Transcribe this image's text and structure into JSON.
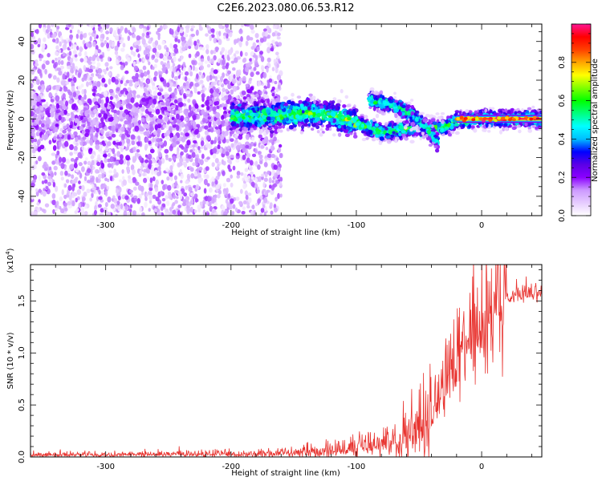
{
  "title": "C2E6.2023.080.06.53.R12",
  "chart_data": [
    {
      "type": "heatmap",
      "xlabel": "Height of straight line (km)",
      "ylabel": "Frequency (Hz)",
      "xlim": [
        -360,
        48
      ],
      "ylim": [
        -50,
        49
      ],
      "xticks": [
        -300,
        -200,
        -100,
        0
      ],
      "yticks": [
        -40,
        -20,
        0,
        20,
        40
      ],
      "colorbar": {
        "label": "Normalized spectral amplitude",
        "range": [
          0.0,
          1.0
        ],
        "ticks": [
          0.0,
          0.2,
          0.4,
          0.6,
          0.8
        ],
        "tick_labels": [
          "0.0",
          "0.2",
          "0.4",
          "0.6",
          "0.8"
        ],
        "colormap_stops": [
          "#ffffff",
          "#e6ccff",
          "#cc99ff",
          "#8a00ff",
          "#5a00e6",
          "#0000ff",
          "#00bfff",
          "#00ffff",
          "#00ff80",
          "#00ff00",
          "#80ff00",
          "#ffff00",
          "#ffa500",
          "#ff4000",
          "#ff0000",
          "#ff1493"
        ]
      },
      "features": [
        {
          "name": "scattered low-amplitude noise",
          "x_range": [
            -360,
            -160
          ],
          "y_range": [
            -50,
            49
          ],
          "amplitude": 0.1
        },
        {
          "name": "main band",
          "points": [
            [
              -200,
              1
            ],
            [
              -160,
              2
            ],
            [
              -140,
              3
            ],
            [
              -120,
              2
            ],
            [
              -100,
              -2
            ],
            [
              -80,
              -7
            ],
            [
              -60,
              -5
            ],
            [
              -40,
              -5
            ],
            [
              -30,
              -4
            ],
            [
              -20,
              -1
            ],
            [
              0,
              0
            ],
            [
              48,
              0
            ]
          ],
          "amplitude": 0.45
        },
        {
          "name": "secondary band",
          "points": [
            [
              -90,
              10
            ],
            [
              -70,
              7
            ],
            [
              -55,
              2
            ],
            [
              -45,
              -4
            ],
            [
              -35,
              -12
            ]
          ],
          "amplitude": 0.4
        },
        {
          "name": "carrier line",
          "points": [
            [
              -20,
              0
            ],
            [
              48,
              0
            ]
          ],
          "amplitude": 0.9
        }
      ]
    },
    {
      "type": "line",
      "xlabel": "Height of straight line (km)",
      "ylabel": "SNR (10 * v/v)",
      "scale_label": "(x10",
      "scale_exponent": "4",
      "xlim": [
        -360,
        48
      ],
      "ylim": [
        0,
        18500
      ],
      "xticks": [
        -300,
        -200,
        -100,
        0
      ],
      "yticks": [
        0,
        5000,
        10000,
        15000
      ],
      "ytick_labels": [
        "0.0",
        "0.5",
        "1.0",
        "1.5"
      ],
      "series": [
        {
          "color": "#e8332f",
          "x": [
            -360,
            -300,
            -250,
            -200,
            -170,
            -150,
            -130,
            -110,
            -100,
            -90,
            -80,
            -70,
            -60,
            -50,
            -45,
            -40,
            -35,
            -30,
            -25,
            -20,
            -15,
            -10,
            -5,
            0,
            5,
            10,
            15,
            20,
            25,
            30,
            35,
            40,
            48
          ],
          "y": [
            200,
            200,
            250,
            250,
            300,
            400,
            500,
            700,
            800,
            900,
            1200,
            1500,
            1800,
            2400,
            3000,
            3500,
            5000,
            6500,
            8000,
            9000,
            10500,
            11500,
            12500,
            13000,
            13800,
            14500,
            14800,
            15100,
            15300,
            15500,
            15600,
            15700,
            15800
          ]
        }
      ]
    }
  ]
}
